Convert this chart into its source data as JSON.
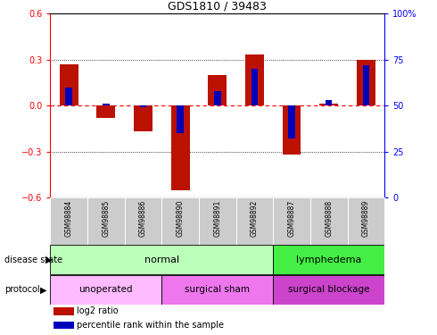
{
  "title": "GDS1810 / 39483",
  "samples": [
    "GSM98884",
    "GSM98885",
    "GSM98886",
    "GSM98890",
    "GSM98891",
    "GSM98892",
    "GSM98887",
    "GSM98888",
    "GSM98889"
  ],
  "log2_ratio": [
    0.27,
    -0.08,
    -0.17,
    -0.55,
    0.2,
    0.33,
    -0.32,
    0.01,
    0.3
  ],
  "percentile_rank": [
    60,
    51,
    49,
    35,
    58,
    70,
    32,
    53,
    72
  ],
  "ylim_left": [
    -0.6,
    0.6
  ],
  "ylim_right": [
    0,
    100
  ],
  "yticks_left": [
    -0.6,
    -0.3,
    0.0,
    0.3,
    0.6
  ],
  "yticks_right": [
    0,
    25,
    50,
    75,
    100
  ],
  "dotted_hlines": [
    -0.3,
    0.3
  ],
  "bar_color": "#bb1100",
  "pct_color": "#0000bb",
  "bar_width": 0.5,
  "pct_bar_width": 0.18,
  "disease_state": [
    {
      "label": "normal",
      "start": 0,
      "end": 6,
      "color": "#bbffbb"
    },
    {
      "label": "lymphedema",
      "start": 6,
      "end": 9,
      "color": "#44ee44"
    }
  ],
  "protocol": [
    {
      "label": "unoperated",
      "start": 0,
      "end": 3,
      "color": "#ffbbff"
    },
    {
      "label": "surgical sham",
      "start": 3,
      "end": 6,
      "color": "#ee77ee"
    },
    {
      "label": "surgical blockage",
      "start": 6,
      "end": 9,
      "color": "#cc44cc"
    }
  ],
  "legend_items": [
    {
      "label": "log2 ratio",
      "color": "#bb1100"
    },
    {
      "label": "percentile rank within the sample",
      "color": "#0000bb"
    }
  ],
  "background_color": "#ffffff",
  "plot_background": "#ffffff",
  "tick_label_area_color": "#cccccc"
}
